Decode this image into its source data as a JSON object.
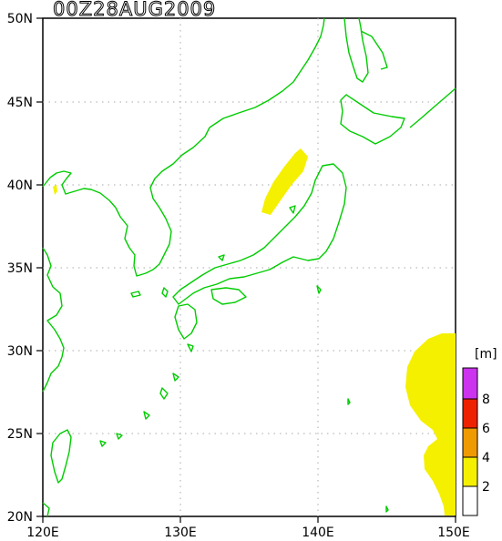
{
  "map": {
    "title": "00Z28AUG2009",
    "lat_labels": [
      "50N",
      "45N",
      "40N",
      "35N",
      "30N",
      "25N",
      "20N"
    ],
    "lon_labels": [
      "120E",
      "130E",
      "140E",
      "150E"
    ],
    "coastline_color": "#00cc00",
    "grid": "dotted"
  },
  "legend": {
    "unit": "[m]",
    "levels": [
      {
        "label": "",
        "color": "#ffffff"
      },
      {
        "label": "2",
        "color": "#f5f000"
      },
      {
        "label": "4",
        "color": "#ee9a00"
      },
      {
        "label": "6",
        "color": "#ee2200"
      },
      {
        "label": "8",
        "color": "#cc33ee"
      }
    ]
  },
  "shaded_regions": [
    {
      "name": "sea-of-japan-wave-area",
      "level": "2-4 m",
      "color": "#f5f000"
    },
    {
      "name": "pacific-east-wave-area",
      "level": "2-4 m",
      "color": "#f5f000"
    },
    {
      "name": "bohai-wave-spot",
      "level": "2-4 m",
      "color": "#f5f000"
    }
  ]
}
